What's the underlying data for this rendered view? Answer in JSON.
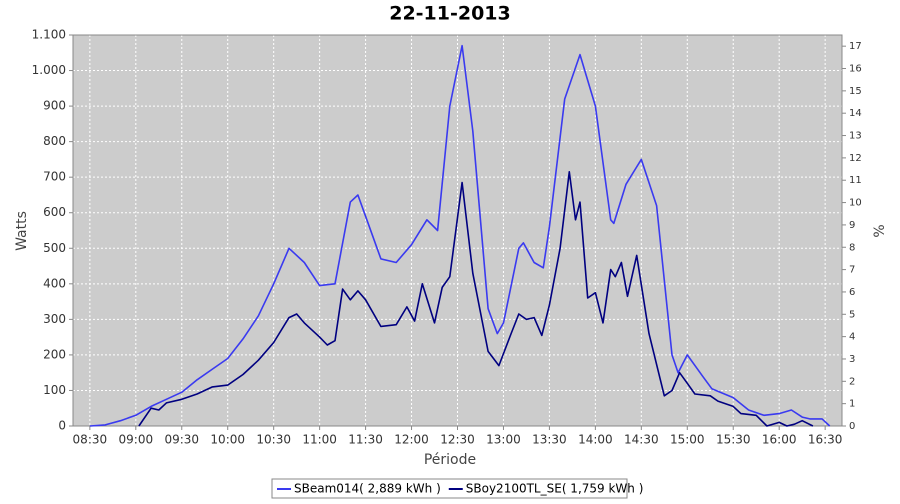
{
  "chart_data": {
    "type": "line",
    "title": "22-11-2013",
    "xlabel": "Période",
    "ylabel": "Watts",
    "y2label": "%",
    "xlim": [
      "08:19",
      "16:41"
    ],
    "xticks": [
      "08:30",
      "09:00",
      "09:30",
      "10:00",
      "10:30",
      "11:00",
      "11:30",
      "12:00",
      "12:30",
      "13:00",
      "13:30",
      "14:00",
      "14:30",
      "15:00",
      "15:30",
      "16:00",
      "16:30"
    ],
    "ylim": [
      0,
      1100
    ],
    "yticks": [
      0,
      100,
      200,
      300,
      400,
      500,
      600,
      700,
      800,
      900,
      {
        "value": 1000,
        "label": "1.000"
      },
      {
        "value": 1100,
        "label": "1.100"
      }
    ],
    "y2lim": [
      0,
      17.5
    ],
    "y2ticks": [
      0,
      1,
      2,
      3,
      4,
      5,
      6,
      7,
      8,
      9,
      10,
      11,
      12,
      13,
      14,
      15,
      16,
      17
    ],
    "grid": true,
    "legend": "bottom",
    "series": [
      {
        "name": "SBeam014( 2,889 kWh )",
        "color": "#3a3af0",
        "x": [
          "08:30",
          "08:40",
          "08:50",
          "09:00",
          "09:10",
          "09:20",
          "09:30",
          "09:40",
          "09:50",
          "10:00",
          "10:10",
          "10:20",
          "10:30",
          "10:40",
          "10:50",
          "11:00",
          "11:10",
          "11:20",
          "11:25",
          "11:30",
          "11:40",
          "11:50",
          "12:00",
          "12:10",
          "12:17",
          "12:25",
          "12:33",
          "12:40",
          "12:50",
          "12:56",
          "13:00",
          "13:10",
          "13:13",
          "13:20",
          "13:26",
          "13:30",
          "13:40",
          "13:50",
          "14:00",
          "14:10",
          "14:12",
          "14:20",
          "14:30",
          "14:40",
          "14:50",
          "14:54",
          "15:00",
          "15:10",
          "15:16",
          "15:30",
          "15:40",
          "15:50",
          "16:00",
          "16:08",
          "16:15",
          "16:20",
          "16:28",
          "16:33"
        ],
        "values": [
          0,
          3,
          15,
          30,
          55,
          75,
          95,
          130,
          160,
          190,
          245,
          310,
          400,
          500,
          460,
          395,
          400,
          630,
          650,
          590,
          470,
          460,
          510,
          580,
          550,
          900,
          1070,
          830,
          330,
          260,
          290,
          500,
          515,
          460,
          445,
          560,
          920,
          1045,
          900,
          580,
          570,
          680,
          750,
          620,
          200,
          150,
          200,
          140,
          105,
          80,
          45,
          30,
          35,
          45,
          25,
          20,
          20,
          0
        ]
      },
      {
        "name": "SBoy2100TL_SE( 1,759 kWh )",
        "color": "#000080",
        "x": [
          "09:02",
          "09:10",
          "09:15",
          "09:20",
          "09:30",
          "09:40",
          "09:50",
          "10:00",
          "10:10",
          "10:20",
          "10:30",
          "10:40",
          "10:45",
          "10:50",
          "11:00",
          "11:05",
          "11:10",
          "11:15",
          "11:20",
          "11:25",
          "11:30",
          "11:40",
          "11:50",
          "11:57",
          "12:02",
          "12:07",
          "12:15",
          "12:20",
          "12:25",
          "12:33",
          "12:40",
          "12:50",
          "12:57",
          "13:05",
          "13:10",
          "13:15",
          "13:20",
          "13:25",
          "13:30",
          "13:37",
          "13:43",
          "13:47",
          "13:50",
          "13:55",
          "14:00",
          "14:05",
          "14:10",
          "14:13",
          "14:17",
          "14:21",
          "14:27",
          "14:35",
          "14:45",
          "14:50",
          "14:55",
          "15:00",
          "15:05",
          "15:15",
          "15:20",
          "15:30",
          "15:35",
          "15:45",
          "15:52",
          "16:00",
          "16:05",
          "16:10",
          "16:15",
          "16:22"
        ],
        "values": [
          0,
          50,
          45,
          65,
          75,
          90,
          110,
          115,
          145,
          185,
          235,
          305,
          315,
          290,
          250,
          228,
          240,
          385,
          355,
          380,
          355,
          280,
          285,
          335,
          295,
          400,
          290,
          390,
          420,
          685,
          430,
          210,
          170,
          260,
          315,
          300,
          305,
          255,
          340,
          500,
          715,
          580,
          630,
          360,
          375,
          290,
          440,
          420,
          460,
          365,
          480,
          260,
          85,
          100,
          150,
          120,
          90,
          85,
          70,
          55,
          35,
          30,
          0,
          10,
          0,
          5,
          15,
          0
        ]
      }
    ]
  }
}
